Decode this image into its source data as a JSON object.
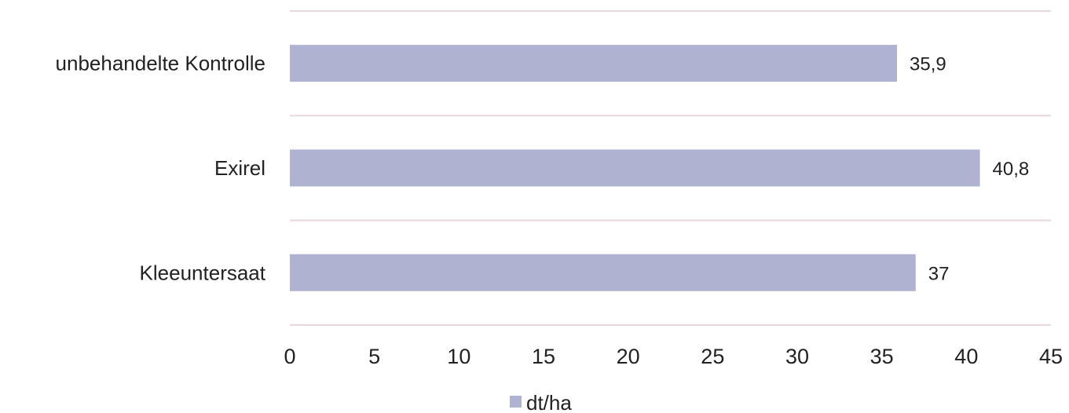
{
  "chart_data": {
    "type": "bar",
    "orientation": "horizontal",
    "categories": [
      "unbehandelte Kontrolle",
      "Exirel",
      "Kleeuntersaat"
    ],
    "values": [
      35.9,
      40.8,
      37
    ],
    "value_labels": [
      "35,9",
      "40,8",
      "37"
    ],
    "series": [
      {
        "name": "dt/ha",
        "values": [
          35.9,
          40.8,
          37
        ],
        "color": "#b0b2d2"
      }
    ],
    "xlim": [
      0,
      45
    ],
    "xticks": [
      0,
      5,
      10,
      15,
      20,
      25,
      30,
      35,
      40,
      45
    ],
    "xtick_labels": [
      "0",
      "5",
      "10",
      "15",
      "20",
      "25",
      "30",
      "35",
      "40",
      "45"
    ],
    "grid": true,
    "grid_color": "#e6d8de",
    "legend_position": "bottom-center"
  }
}
